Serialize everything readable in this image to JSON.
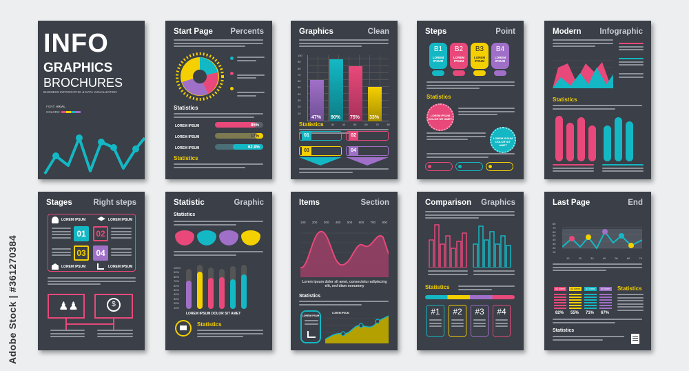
{
  "cover": {
    "title_line1": "INFO",
    "title_line2": "GRAPHICS",
    "title_line3": "BROCHURES",
    "subtitle": "BUSINESS INFOGRAPHIC & DATA VISUALIZATION",
    "font_label": "FONT:",
    "font_value": "ARIAL",
    "colors_label": "COLORS:"
  },
  "pages": {
    "start": {
      "title": "Start Page",
      "sub": "Percents",
      "stats": "Statistics",
      "stats2": "Statistics",
      "bars": [
        {
          "label": "LOREM IPSUM",
          "value": "85%"
        },
        {
          "label": "LOREM IPSUM",
          "value": "17%"
        },
        {
          "label": "LOREM IPSUM",
          "value": "62.9%"
        }
      ]
    },
    "graphics": {
      "title": "Graphics",
      "sub": "Clean",
      "stats": "Statistics",
      "bars": [
        "47%",
        "90%",
        "75%",
        "33%"
      ],
      "steps": [
        "01",
        "02",
        "03",
        "04"
      ],
      "yticks": [
        "100",
        "90",
        "80",
        "70",
        "60",
        "50",
        "40",
        "30",
        "20",
        "10"
      ],
      "xticks": [
        "10",
        "20",
        "30",
        "40",
        "50",
        "60",
        "70",
        "80"
      ]
    },
    "steps": {
      "title": "Steps",
      "sub": "Point",
      "stats": "Statistics",
      "boxes": [
        {
          "code": "B1",
          "text": "LOREM IPSUM"
        },
        {
          "code": "B2",
          "text": "LOREM IPSUM"
        },
        {
          "code": "B3",
          "text": "LOREM IPSUM"
        },
        {
          "code": "B4",
          "text": "LOREM IPSUM"
        }
      ],
      "circle1": "LOREM IPSUM DOLOR SIT AMET",
      "circle2": "LOREM IPSUM DOLOR SIT AMET"
    },
    "modern": {
      "title": "Modern",
      "sub": "Infographic",
      "stats": "Statistics"
    },
    "stages": {
      "title": "Stages",
      "sub": "Right steps",
      "cells": [
        {
          "num": "01",
          "label": "LOREM IPSUM"
        },
        {
          "num": "02",
          "label": "LOREM IPSUM"
        },
        {
          "num": "03",
          "label": "LOREM IPSUM"
        },
        {
          "num": "04",
          "label": "LOREM IPSUM"
        }
      ]
    },
    "statistic": {
      "title": "Statistic",
      "sub": "Graphic",
      "stats": "Statistics",
      "stats2": "Statistics",
      "caption": "LOREM IPSUM DOLOR SIT AMET",
      "yticks": [
        "100%",
        "90%",
        "80%",
        "70%",
        "60%",
        "50%",
        "40%",
        "30%",
        "20%",
        "10%"
      ]
    },
    "items": {
      "title": "Items",
      "sub": "Section",
      "stats": "Statistics",
      "xticks": [
        "100",
        "200",
        "300",
        "400",
        "500",
        "600",
        "700",
        "800"
      ],
      "caption": "Lorem ipsum dolor sit amet, consectetur adipiscing elit, sed diam nonummy",
      "badge": "LOREM IPSUM",
      "chart_label": "LOREM IPSUM"
    },
    "comparison": {
      "title": "Comparison",
      "sub": "Graphics",
      "stats": "Statistics",
      "tags": [
        "#1",
        "#2",
        "#3",
        "#4"
      ]
    },
    "last": {
      "title": "Last Page",
      "sub": "End",
      "stats": "Statistics",
      "stats2": "Statistics",
      "tags": [
        "#1 lorem",
        "#2 lorem",
        "#3 lorem",
        "#4 lorem"
      ],
      "pcts": [
        "82%",
        "55%",
        "71%",
        "67%"
      ],
      "yticks": [
        "80",
        "70",
        "60",
        "50",
        "40",
        "30",
        "20",
        "10"
      ],
      "xticks": [
        "10",
        "20",
        "30",
        "40",
        "50",
        "60",
        "70"
      ]
    }
  },
  "watermark": "Adobe Stock | #361270384",
  "palette": {
    "pink": "#e8497a",
    "teal": "#14b8c4",
    "yellow": "#f5d000",
    "purple": "#a070c8",
    "dark": "#3a3f48"
  }
}
